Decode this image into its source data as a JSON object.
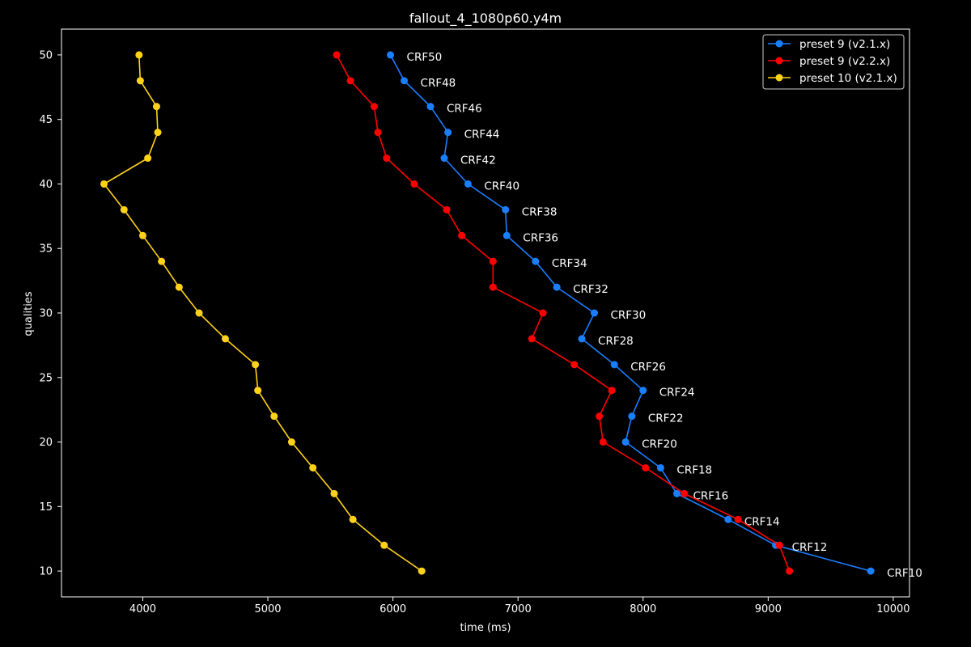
{
  "chart_data": {
    "type": "line",
    "title": "fallout_4_1080p60.y4m",
    "xlabel": "time (ms)",
    "ylabel": "qualities",
    "xlim": [
      3350,
      10130
    ],
    "ylim": [
      8,
      52
    ],
    "xticks": [
      4000,
      5000,
      6000,
      7000,
      8000,
      9000,
      10000
    ],
    "yticks": [
      10,
      15,
      20,
      25,
      30,
      35,
      40,
      45,
      50
    ],
    "grid": false,
    "legend_position": "top-right",
    "series": [
      {
        "name": "preset 9 (v2.1.x)",
        "color": "#1a7fff",
        "x": [
          5980,
          6090,
          6300,
          6440,
          6410,
          6600,
          6900,
          6910,
          7140,
          7310,
          7610,
          7510,
          7770,
          8000,
          7910,
          7860,
          8140,
          8270,
          8680,
          9060,
          9820
        ],
        "y": [
          50,
          48,
          46,
          44,
          42,
          40,
          38,
          36,
          34,
          32,
          30,
          28,
          26,
          24,
          22,
          20,
          18,
          16,
          14,
          12,
          10
        ],
        "point_labels": [
          "CRF50",
          "CRF48",
          "CRF46",
          "CRF44",
          "CRF42",
          "CRF40",
          "CRF38",
          "CRF36",
          "CRF34",
          "CRF32",
          "CRF30",
          "CRF28",
          "CRF26",
          "CRF24",
          "CRF22",
          "CRF20",
          "CRF18",
          "CRF16",
          "CRF14",
          "CRF12",
          "CRF10"
        ]
      },
      {
        "name": "preset 9 (v2.2.x)",
        "color": "#ff0000",
        "x": [
          5550,
          5660,
          5850,
          5880,
          5950,
          6170,
          6430,
          6550,
          6800,
          6800,
          7200,
          7110,
          7450,
          7750,
          7650,
          7680,
          8020,
          8330,
          8760,
          9090,
          9170
        ],
        "y": [
          50,
          48,
          46,
          44,
          42,
          40,
          38,
          36,
          34,
          32,
          30,
          28,
          26,
          24,
          22,
          20,
          18,
          16,
          14,
          12,
          10
        ]
      },
      {
        "name": "preset 10 (v2.1.x)",
        "color": "#ffd21a",
        "x": [
          3970,
          3980,
          4110,
          4120,
          4040,
          3690,
          3850,
          4000,
          4150,
          4290,
          4450,
          4660,
          4900,
          4920,
          5050,
          5190,
          5360,
          5530,
          5680,
          5930,
          6230
        ],
        "y": [
          50,
          48,
          46,
          44,
          42,
          40,
          38,
          36,
          34,
          32,
          30,
          28,
          26,
          24,
          22,
          20,
          18,
          16,
          14,
          12,
          10
        ]
      }
    ]
  }
}
